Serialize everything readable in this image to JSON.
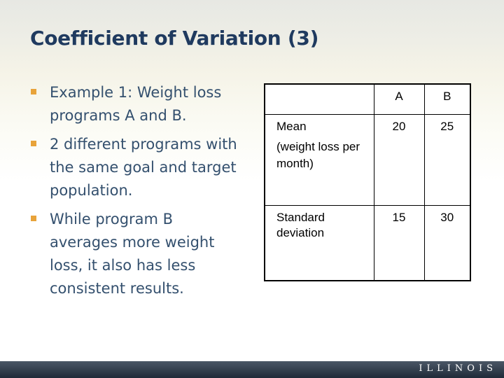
{
  "slide": {
    "title": "Coefficient of Variation (3)",
    "bullets": [
      "Example 1: Weight loss programs A and B.",
      "2 different programs with the same goal and target population.",
      "While program B averages more weight loss, it also has less consistent results."
    ]
  },
  "table": {
    "header": {
      "corner": "",
      "col_a": "A",
      "col_b": "B"
    },
    "rows": [
      {
        "label": "Mean",
        "sublabel": "(weight loss per month)",
        "a": "20",
        "b": "25"
      },
      {
        "label": "Standard deviation",
        "sublabel": "",
        "a": "15",
        "b": "30"
      }
    ]
  },
  "footer": {
    "logo_text": "ILLINOIS"
  },
  "colors": {
    "title": "#1f3a5f",
    "body_text": "#34506e",
    "bullet_marker": "#e8a33a",
    "footer_bar": "#2b3645"
  }
}
